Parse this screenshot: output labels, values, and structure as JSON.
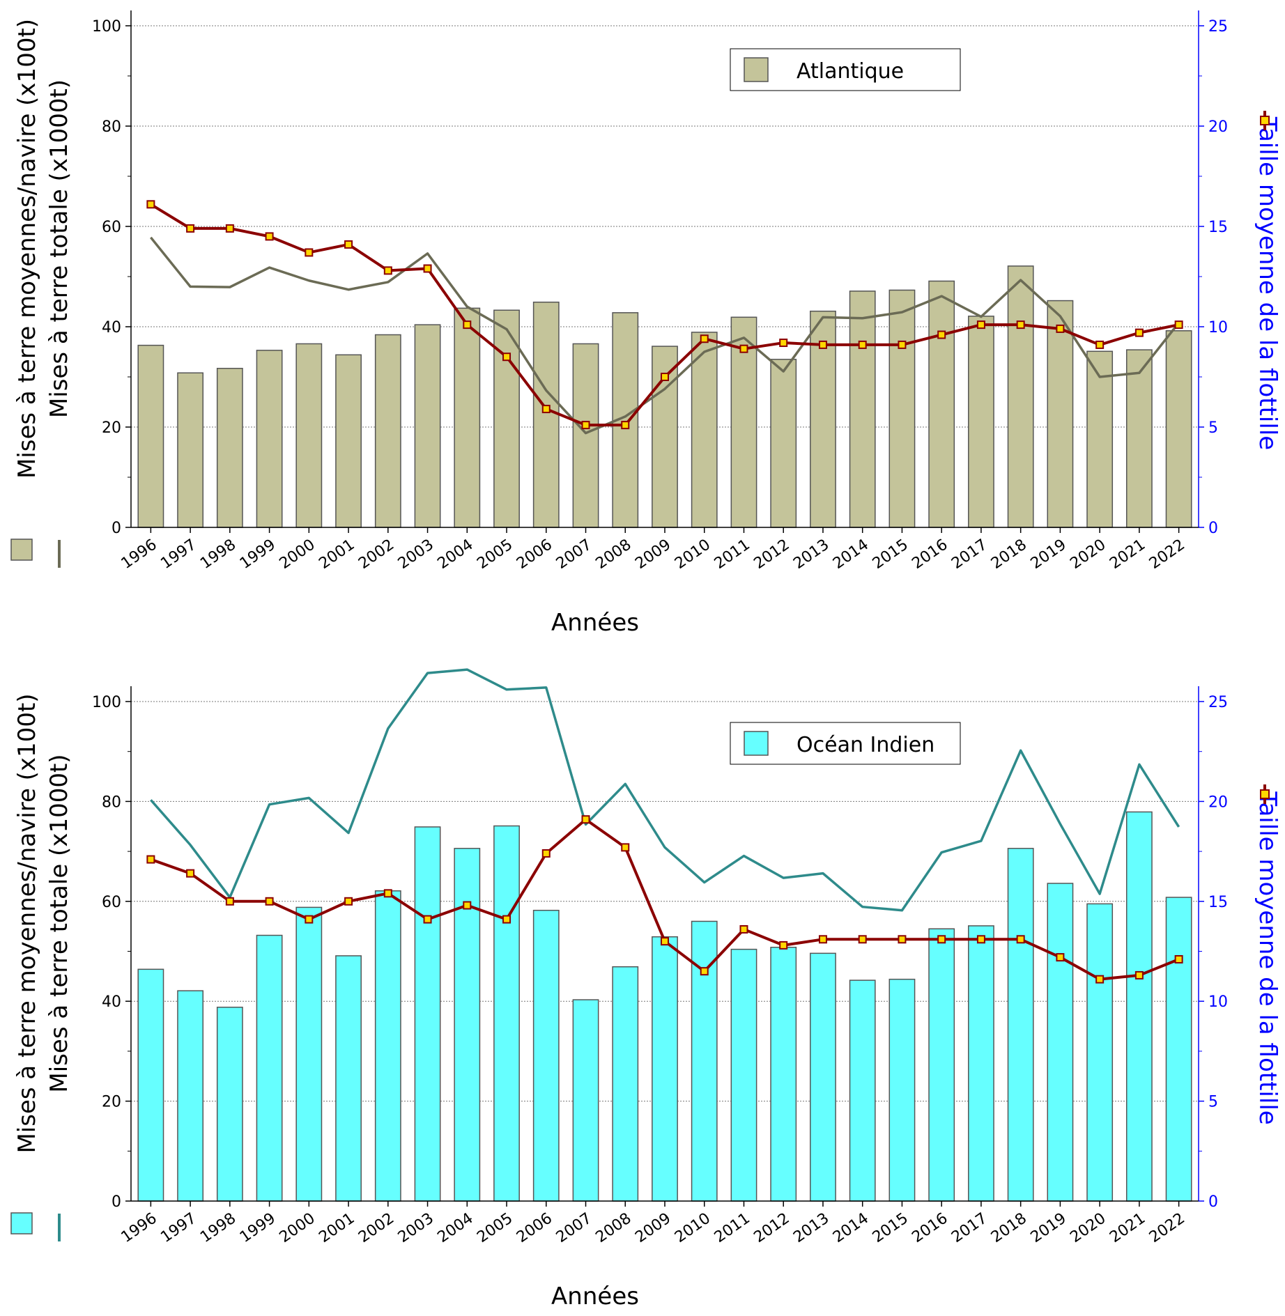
{
  "chart_data": [
    {
      "type": "bar",
      "years": [
        "1996",
        "1997",
        "1998",
        "1999",
        "2000",
        "2001",
        "2002",
        "2003",
        "2004",
        "2005",
        "2006",
        "2007",
        "2008",
        "2009",
        "2010",
        "2011",
        "2012",
        "2013",
        "2014",
        "2015",
        "2016",
        "2017",
        "2018",
        "2019",
        "2020",
        "2021",
        "2022"
      ],
      "legend": "Atlantique",
      "xlabel": "Années",
      "ylabel_bars": "Mises à terre moyennes/navire (x100t)",
      "ylabel_line": "Mises à terre totale (x1000t)",
      "y2label": "Taille moyenne de la flottille",
      "ylim": [
        0,
        100
      ],
      "y2lim": [
        0,
        25
      ],
      "y_ticks": [
        "0",
        "20",
        "40",
        "60",
        "80",
        "100"
      ],
      "y2_ticks": [
        "0",
        "5",
        "10",
        "15",
        "20",
        "25"
      ],
      "colors": {
        "bars": "#c4c49a",
        "bar_line": "#6b6b55",
        "fleet": "#8b0000",
        "marker": "#ffd700"
      },
      "avg_landings_per_vessel": [
        36.3,
        30.8,
        31.7,
        35.3,
        36.6,
        34.4,
        38.4,
        40.4,
        43.7,
        43.3,
        44.9,
        36.6,
        42.8,
        36.1,
        38.9,
        41.9,
        33.5,
        43.1,
        47.1,
        47.3,
        49.1,
        42.1,
        52.1,
        45.2,
        35.1,
        35.4,
        39.2
      ],
      "total_landings": [
        57.8,
        48.0,
        47.9,
        51.8,
        49.2,
        47.4,
        48.9,
        54.6,
        44.0,
        39.5,
        27.3,
        18.8,
        22.1,
        27.6,
        35.0,
        37.8,
        31.1,
        41.9,
        41.7,
        42.9,
        46.1,
        42.0,
        49.3,
        42.1,
        30.0,
        30.8,
        40.8
      ],
      "fleet_size": [
        16.1,
        14.9,
        14.9,
        14.5,
        13.7,
        14.1,
        12.8,
        12.9,
        10.1,
        8.5,
        5.9,
        5.1,
        5.1,
        7.5,
        9.4,
        8.9,
        9.2,
        9.1,
        9.1,
        9.1,
        9.6,
        10.1,
        10.1,
        9.9,
        9.1,
        9.7,
        10.1
      ]
    },
    {
      "type": "bar",
      "years": [
        "1996",
        "1997",
        "1998",
        "1999",
        "2000",
        "2001",
        "2002",
        "2003",
        "2004",
        "2005",
        "2006",
        "2007",
        "2008",
        "2009",
        "2010",
        "2011",
        "2012",
        "2013",
        "2014",
        "2015",
        "2016",
        "2017",
        "2018",
        "2019",
        "2020",
        "2021",
        "2022"
      ],
      "legend": "Océan Indien",
      "xlabel": "Années",
      "ylabel_bars": "Mises à terre moyennes/navire (x100t)",
      "ylabel_line": "Mises à terre totale (x1000t)",
      "y2label": "Taille moyenne de la flottille",
      "ylim": [
        0,
        100
      ],
      "y2lim": [
        0,
        25
      ],
      "y_ticks": [
        "0",
        "20",
        "40",
        "60",
        "80",
        "100"
      ],
      "y2_ticks": [
        "0",
        "5",
        "10",
        "15",
        "20",
        "25"
      ],
      "colors": {
        "bars": "#66ffff",
        "bar_line": "#2e8b8b",
        "fleet": "#8b0000",
        "marker": "#ffd700"
      },
      "avg_landings_per_vessel": [
        46.4,
        42.1,
        38.8,
        53.2,
        58.8,
        49.1,
        62.1,
        74.9,
        70.6,
        75.1,
        58.2,
        40.3,
        46.9,
        52.9,
        56.0,
        50.4,
        50.8,
        49.6,
        44.2,
        44.4,
        54.5,
        55.1,
        70.6,
        63.6,
        59.5,
        77.9,
        60.8
      ],
      "total_landings": [
        80.3,
        71.3,
        60.8,
        79.4,
        80.7,
        73.7,
        94.6,
        105.7,
        106.4,
        102.4,
        102.8,
        75.4,
        83.5,
        70.8,
        63.8,
        69.1,
        64.7,
        65.6,
        58.9,
        58.2,
        69.8,
        72.1,
        90.2,
        75.5,
        61.5,
        87.4,
        74.9
      ],
      "fleet_size": [
        17.1,
        16.4,
        15.0,
        15.0,
        14.1,
        15.0,
        15.4,
        14.1,
        14.8,
        14.1,
        17.4,
        19.1,
        17.7,
        13.0,
        11.5,
        13.6,
        12.8,
        13.1,
        13.1,
        13.1,
        13.1,
        13.1,
        13.1,
        12.2,
        11.1,
        11.3,
        12.1
      ]
    }
  ]
}
